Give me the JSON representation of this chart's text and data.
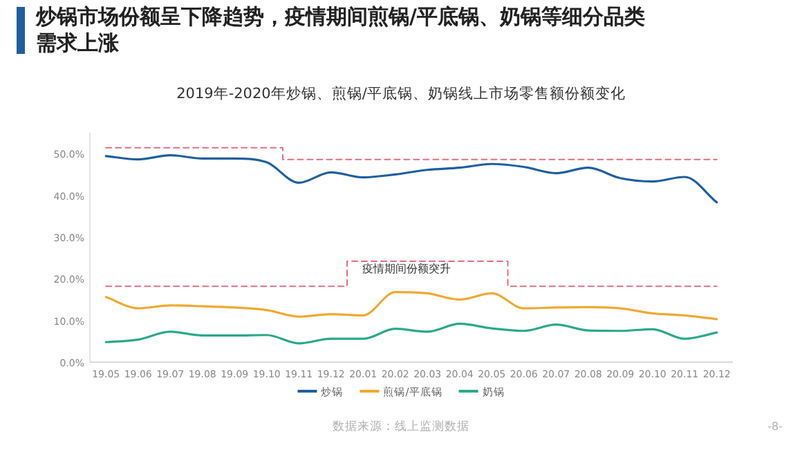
{
  "chart_data": {
    "type": "line",
    "title": "炒锅市场份额呈下降趋势，疫情期间煎锅/平底锅、奶锅等细分品类需求上涨",
    "subtitle": "2019年-2020年炒锅、煎锅/平底锅、奶锅线上市场零售额份额变化",
    "categories": [
      "19.05",
      "19.06",
      "19.07",
      "19.08",
      "19.09",
      "19.10",
      "19.11",
      "19.12",
      "20.01",
      "20.02",
      "20.03",
      "20.04",
      "20.05",
      "20.06",
      "20.07",
      "20.08",
      "20.09",
      "20.10",
      "20.11",
      "20.12"
    ],
    "series": [
      {
        "name": "炒锅",
        "color": "#1f5fa0",
        "values": [
          49.4,
          48.6,
          49.6,
          48.8,
          48.8,
          47.9,
          43.0,
          45.5,
          44.3,
          45.0,
          46.1,
          46.6,
          47.5,
          46.8,
          45.3,
          46.6,
          44.1,
          43.3,
          44.4,
          38.3
        ]
      },
      {
        "name": "煎锅/平底锅",
        "color": "#f0a830",
        "values": [
          15.6,
          12.9,
          13.6,
          13.4,
          13.1,
          12.5,
          10.9,
          11.5,
          11.2,
          16.8,
          16.5,
          15.0,
          16.5,
          12.9,
          13.1,
          13.2,
          12.9,
          11.7,
          11.2,
          10.3
        ]
      },
      {
        "name": "奶锅",
        "color": "#2aa88a",
        "values": [
          4.8,
          5.4,
          7.3,
          6.4,
          6.4,
          6.5,
          4.5,
          5.6,
          5.6,
          8.0,
          7.3,
          9.2,
          8.1,
          7.5,
          9.0,
          7.6,
          7.5,
          7.9,
          5.6,
          7.1
        ]
      },
      {
        "type": "step",
        "color": "#e07080",
        "line_style": "dashed",
        "values": [
          51.4,
          51.4,
          51.4,
          51.4,
          51.4,
          51.4,
          48.6,
          48.6,
          48.6,
          48.6,
          48.6,
          48.6,
          48.6,
          48.6,
          48.6,
          48.6,
          48.6,
          48.6,
          48.6,
          48.6
        ]
      },
      {
        "type": "step",
        "color": "#e07080",
        "line_style": "dashed",
        "values": [
          18.2,
          18.2,
          18.2,
          18.2,
          18.2,
          18.2,
          18.2,
          18.2,
          24.2,
          24.2,
          24.2,
          24.2,
          24.2,
          18.2,
          18.2,
          18.2,
          18.2,
          18.2,
          18.2,
          18.2
        ]
      }
    ],
    "ylim": [
      0,
      55
    ],
    "yticks": [
      {
        "value": 0,
        "label": "0.0%"
      },
      {
        "value": 10,
        "label": "10.0%"
      },
      {
        "value": 20,
        "label": "20.0%"
      },
      {
        "value": 30,
        "label": "30.0%"
      },
      {
        "value": 40,
        "label": "40.0%"
      },
      {
        "value": 50,
        "label": "50.0%"
      }
    ],
    "grid": false,
    "legend": "bottom",
    "marker": "none",
    "line_style": "solid",
    "annotations": [
      "疫情期间份额突升",
      "数据来源：线上监测数据",
      "-8-"
    ]
  }
}
